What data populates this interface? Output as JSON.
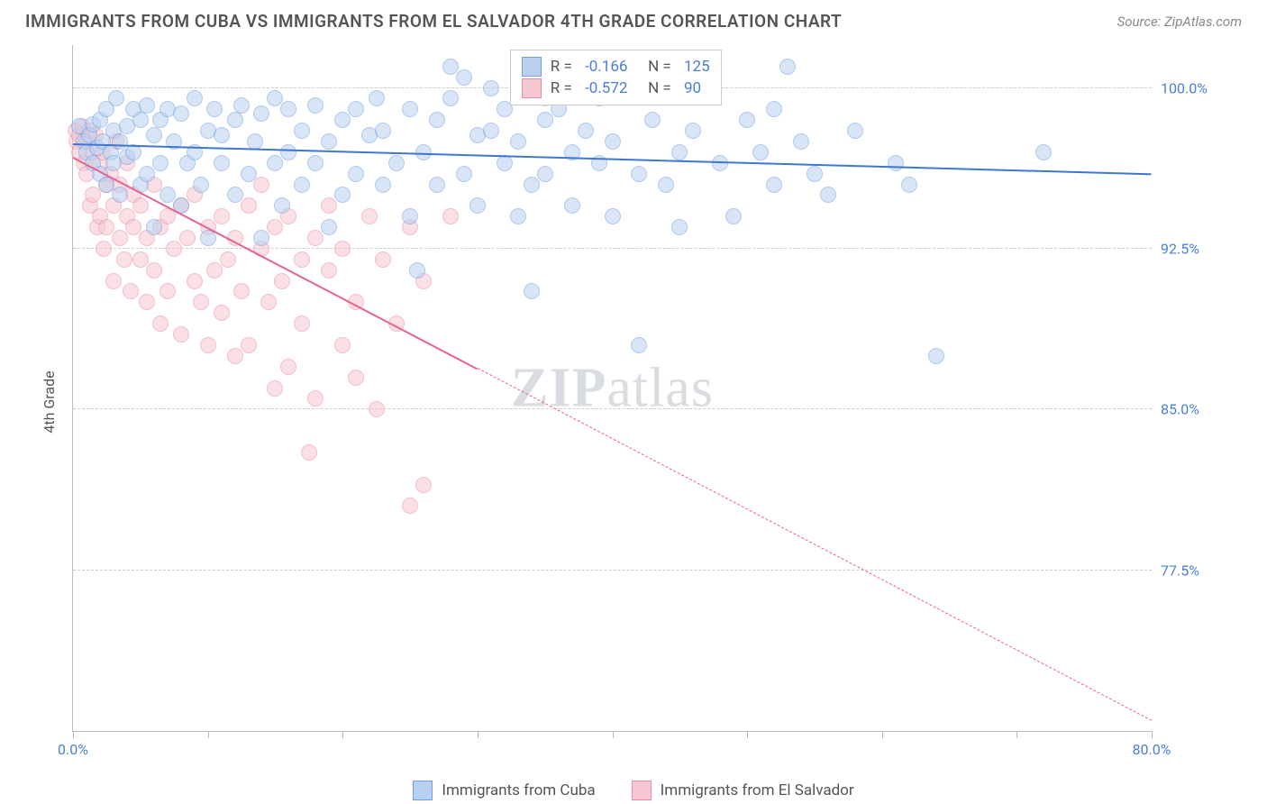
{
  "title": "IMMIGRANTS FROM CUBA VS IMMIGRANTS FROM EL SALVADOR 4TH GRADE CORRELATION CHART",
  "source": "Source: ZipAtlas.com",
  "ylabel": "4th Grade",
  "watermark_a": "ZIP",
  "watermark_b": "atlas",
  "chart": {
    "type": "scatter",
    "xlim": [
      0,
      80
    ],
    "ylim": [
      70,
      102
    ],
    "x_min_label": "0.0%",
    "x_max_label": "80.0%",
    "xtick_positions": [
      0,
      10,
      20,
      30,
      40,
      50,
      60,
      70,
      80
    ],
    "yticks": [
      {
        "v": 100.0,
        "label": "100.0%"
      },
      {
        "v": 92.5,
        "label": "92.5%"
      },
      {
        "v": 85.0,
        "label": "85.0%"
      },
      {
        "v": 77.5,
        "label": "77.5%"
      }
    ],
    "grid_color": "#cccccc",
    "background_color": "#ffffff",
    "marker_radius": 9,
    "marker_opacity": 0.55,
    "series": [
      {
        "name": "Immigrants from Cuba",
        "color_fill": "#b9d0ef",
        "color_stroke": "#6f9fde",
        "trend_color": "#3d77d1",
        "R": "-0.166",
        "N": "125",
        "trend": {
          "x1": 0,
          "y1": 97.4,
          "x2": 80,
          "y2": 96.0,
          "dashed_after_x": 80
        },
        "points": []
      },
      {
        "name": "Immigrants from El Salvador",
        "color_fill": "#f6c6d1",
        "color_stroke": "#e98ba4",
        "trend_color": "#e5638c",
        "R": "-0.572",
        "N": "90",
        "trend": {
          "x1": 0,
          "y1": 96.8,
          "x2": 80,
          "y2": 70.5,
          "dashed_after_x": 30
        },
        "points": []
      }
    ],
    "stats_box": {
      "left_pct": 40.5,
      "top_y": 101.8
    },
    "cuba_cloud": [
      [
        0.5,
        98.2
      ],
      [
        0.8,
        97.5
      ],
      [
        1.0,
        97.0
      ],
      [
        1.2,
        97.8
      ],
      [
        1.5,
        96.5
      ],
      [
        1.5,
        98.3
      ],
      [
        1.8,
        97.2
      ],
      [
        2.0,
        96.0
      ],
      [
        2.0,
        98.5
      ],
      [
        2.2,
        97.5
      ],
      [
        2.5,
        95.5
      ],
      [
        2.5,
        99.0
      ],
      [
        2.8,
        97.0
      ],
      [
        3.0,
        98.0
      ],
      [
        3.0,
        96.5
      ],
      [
        3.2,
        99.5
      ],
      [
        3.5,
        97.5
      ],
      [
        3.5,
        95.0
      ],
      [
        4.0,
        98.2
      ],
      [
        4.0,
        96.8
      ],
      [
        4.5,
        99.0
      ],
      [
        4.5,
        97.0
      ],
      [
        5.0,
        95.5
      ],
      [
        5.0,
        98.5
      ],
      [
        5.5,
        99.2
      ],
      [
        5.5,
        96.0
      ],
      [
        6.0,
        97.8
      ],
      [
        6.0,
        93.5
      ],
      [
        6.5,
        98.5
      ],
      [
        6.5,
        96.5
      ],
      [
        7.0,
        99.0
      ],
      [
        7.0,
        95.0
      ],
      [
        7.5,
        97.5
      ],
      [
        8.0,
        98.8
      ],
      [
        8.0,
        94.5
      ],
      [
        8.5,
        96.5
      ],
      [
        9.0,
        99.5
      ],
      [
        9.0,
        97.0
      ],
      [
        9.5,
        95.5
      ],
      [
        10.0,
        98.0
      ],
      [
        10.0,
        93.0
      ],
      [
        10.5,
        99.0
      ],
      [
        11.0,
        96.5
      ],
      [
        11.0,
        97.8
      ],
      [
        12.0,
        95.0
      ],
      [
        12.0,
        98.5
      ],
      [
        12.5,
        99.2
      ],
      [
        13.0,
        96.0
      ],
      [
        13.5,
        97.5
      ],
      [
        14.0,
        98.8
      ],
      [
        14.0,
        93.0
      ],
      [
        15.0,
        99.5
      ],
      [
        15.0,
        96.5
      ],
      [
        15.5,
        94.5
      ],
      [
        16.0,
        97.0
      ],
      [
        16.0,
        99.0
      ],
      [
        17.0,
        95.5
      ],
      [
        17.0,
        98.0
      ],
      [
        18.0,
        99.2
      ],
      [
        18.0,
        96.5
      ],
      [
        19.0,
        97.5
      ],
      [
        19.0,
        93.5
      ],
      [
        20.0,
        98.5
      ],
      [
        20.0,
        95.0
      ],
      [
        21.0,
        99.0
      ],
      [
        21.0,
        96.0
      ],
      [
        22.0,
        97.8
      ],
      [
        22.5,
        99.5
      ],
      [
        23.0,
        95.5
      ],
      [
        23.0,
        98.0
      ],
      [
        24.0,
        96.5
      ],
      [
        25.0,
        99.0
      ],
      [
        25.0,
        94.0
      ],
      [
        25.5,
        91.5
      ],
      [
        26.0,
        97.0
      ],
      [
        27.0,
        98.5
      ],
      [
        27.0,
        95.5
      ],
      [
        28.0,
        99.5
      ],
      [
        28.0,
        101.0
      ],
      [
        29.0,
        96.0
      ],
      [
        29.0,
        100.5
      ],
      [
        30.0,
        97.8
      ],
      [
        30.0,
        94.5
      ],
      [
        31.0,
        98.0
      ],
      [
        31.0,
        100.0
      ],
      [
        32.0,
        96.5
      ],
      [
        32.0,
        99.0
      ],
      [
        33.0,
        94.0
      ],
      [
        33.0,
        97.5
      ],
      [
        34.0,
        95.5
      ],
      [
        34.0,
        90.5
      ],
      [
        35.0,
        98.5
      ],
      [
        35.0,
        96.0
      ],
      [
        36.0,
        99.0
      ],
      [
        37.0,
        97.0
      ],
      [
        37.0,
        94.5
      ],
      [
        38.0,
        98.0
      ],
      [
        39.0,
        96.5
      ],
      [
        39.0,
        99.5
      ],
      [
        40.0,
        94.0
      ],
      [
        40.0,
        97.5
      ],
      [
        42.0,
        88.0
      ],
      [
        42.0,
        96.0
      ],
      [
        43.0,
        98.5
      ],
      [
        44.0,
        95.5
      ],
      [
        45.0,
        93.5
      ],
      [
        45.0,
        97.0
      ],
      [
        46.0,
        98.0
      ],
      [
        48.0,
        96.5
      ],
      [
        49.0,
        94.0
      ],
      [
        50.0,
        98.5
      ],
      [
        51.0,
        97.0
      ],
      [
        52.0,
        99.0
      ],
      [
        52.0,
        95.5
      ],
      [
        53.0,
        101.0
      ],
      [
        54.0,
        97.5
      ],
      [
        55.0,
        96.0
      ],
      [
        56.0,
        95.0
      ],
      [
        58.0,
        98.0
      ],
      [
        61.0,
        96.5
      ],
      [
        62.0,
        95.5
      ],
      [
        64.0,
        87.5
      ],
      [
        72.0,
        97.0
      ]
    ],
    "salvador_cloud": [
      [
        0.2,
        98.0
      ],
      [
        0.3,
        97.5
      ],
      [
        0.5,
        97.8
      ],
      [
        0.5,
        97.0
      ],
      [
        0.7,
        98.2
      ],
      [
        0.8,
        96.5
      ],
      [
        1.0,
        97.5
      ],
      [
        1.0,
        96.0
      ],
      [
        1.2,
        98.0
      ],
      [
        1.3,
        94.5
      ],
      [
        1.5,
        97.0
      ],
      [
        1.5,
        95.0
      ],
      [
        1.7,
        97.8
      ],
      [
        1.8,
        93.5
      ],
      [
        2.0,
        96.5
      ],
      [
        2.0,
        94.0
      ],
      [
        2.2,
        97.0
      ],
      [
        2.3,
        92.5
      ],
      [
        2.5,
        95.5
      ],
      [
        2.5,
        93.5
      ],
      [
        2.8,
        96.0
      ],
      [
        3.0,
        91.0
      ],
      [
        3.0,
        94.5
      ],
      [
        3.2,
        97.5
      ],
      [
        3.5,
        93.0
      ],
      [
        3.5,
        95.5
      ],
      [
        3.8,
        92.0
      ],
      [
        4.0,
        94.0
      ],
      [
        4.0,
        96.5
      ],
      [
        4.3,
        90.5
      ],
      [
        4.5,
        93.5
      ],
      [
        4.5,
        95.0
      ],
      [
        5.0,
        92.0
      ],
      [
        5.0,
        94.5
      ],
      [
        5.5,
        90.0
      ],
      [
        5.5,
        93.0
      ],
      [
        6.0,
        95.5
      ],
      [
        6.0,
        91.5
      ],
      [
        6.5,
        89.0
      ],
      [
        6.5,
        93.5
      ],
      [
        7.0,
        94.0
      ],
      [
        7.0,
        90.5
      ],
      [
        7.5,
        92.5
      ],
      [
        8.0,
        94.5
      ],
      [
        8.0,
        88.5
      ],
      [
        8.5,
        93.0
      ],
      [
        9.0,
        91.0
      ],
      [
        9.0,
        95.0
      ],
      [
        9.5,
        90.0
      ],
      [
        10.0,
        93.5
      ],
      [
        10.0,
        88.0
      ],
      [
        10.5,
        91.5
      ],
      [
        11.0,
        94.0
      ],
      [
        11.0,
        89.5
      ],
      [
        11.5,
        92.0
      ],
      [
        12.0,
        93.0
      ],
      [
        12.0,
        87.5
      ],
      [
        12.5,
        90.5
      ],
      [
        13.0,
        94.5
      ],
      [
        13.0,
        88.0
      ],
      [
        14.0,
        92.5
      ],
      [
        14.0,
        95.5
      ],
      [
        14.5,
        90.0
      ],
      [
        15.0,
        93.5
      ],
      [
        15.0,
        86.0
      ],
      [
        15.5,
        91.0
      ],
      [
        16.0,
        94.0
      ],
      [
        16.0,
        87.0
      ],
      [
        17.0,
        92.0
      ],
      [
        17.0,
        89.0
      ],
      [
        17.5,
        83.0
      ],
      [
        18.0,
        93.0
      ],
      [
        18.0,
        85.5
      ],
      [
        19.0,
        91.5
      ],
      [
        19.0,
        94.5
      ],
      [
        20.0,
        88.0
      ],
      [
        20.0,
        92.5
      ],
      [
        21.0,
        90.0
      ],
      [
        21.0,
        86.5
      ],
      [
        22.0,
        94.0
      ],
      [
        22.5,
        85.0
      ],
      [
        23.0,
        92.0
      ],
      [
        24.0,
        89.0
      ],
      [
        25.0,
        93.5
      ],
      [
        25.0,
        80.5
      ],
      [
        26.0,
        91.0
      ],
      [
        26.0,
        81.5
      ],
      [
        28.0,
        94.0
      ],
      [
        35.0,
        99.5
      ]
    ]
  }
}
